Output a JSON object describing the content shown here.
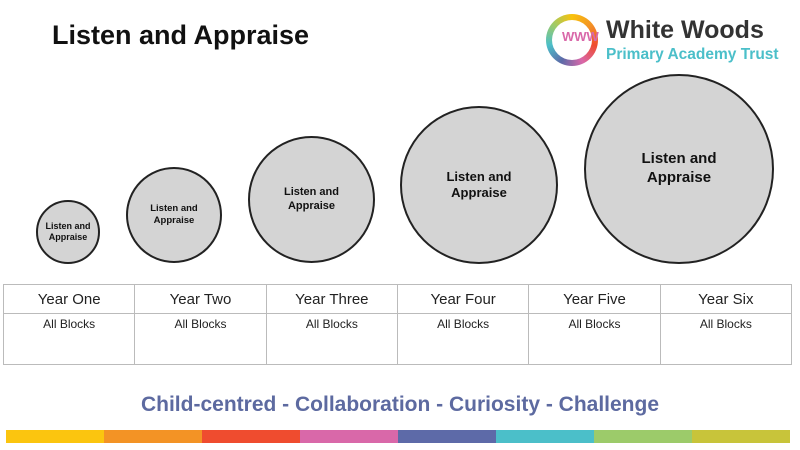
{
  "title": "Listen and Appraise",
  "logo": {
    "name": "White Woods",
    "subtitle": "Primary Academy Trust",
    "glyph": "WWW"
  },
  "circles": [
    "Listen and Appraise",
    "Listen and Appraise",
    "Listen and Appraise",
    "Listen and Appraise",
    "Listen and Appraise"
  ],
  "table": {
    "headers": [
      "Year One",
      "Year Two",
      "Year Three",
      "Year Four",
      "Year Five",
      "Year Six"
    ],
    "cells": [
      "All Blocks",
      "All Blocks",
      "All Blocks",
      "All Blocks",
      "All Blocks",
      "All Blocks"
    ]
  },
  "motto": "Child-centred - Collaboration - Curiosity - Challenge",
  "strip_colors": [
    "#fbc50f",
    "#f39325",
    "#ef4c2f",
    "#d968a9",
    "#5d6aa8",
    "#4bbfc9",
    "#9ccb6a",
    "#c8c43a"
  ]
}
